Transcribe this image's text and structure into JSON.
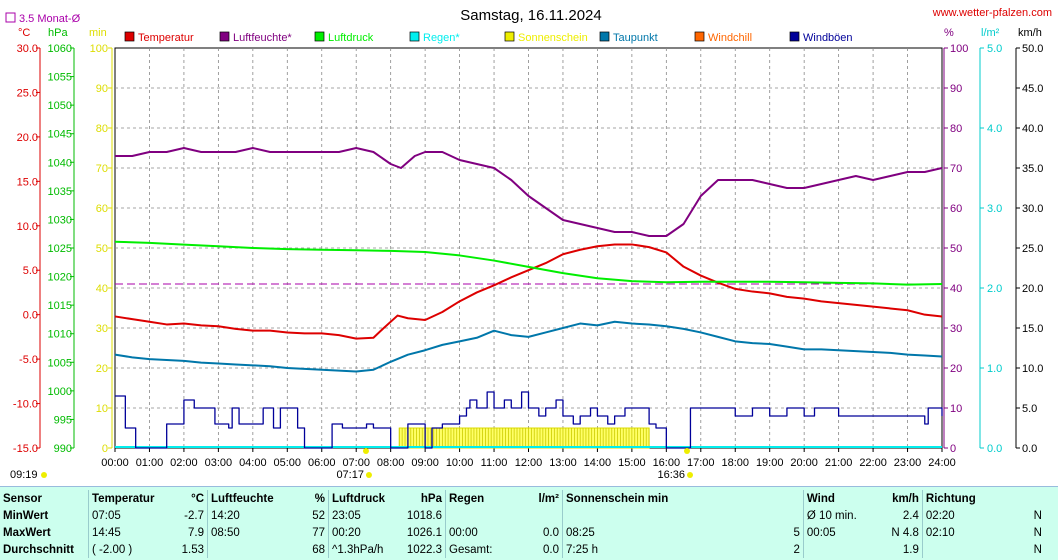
{
  "title": "Samstag, 16.11.2024",
  "site": "www.wetter-pfalzen.com",
  "avg_label": "3.5 Monat-Ø",
  "left_units": [
    "°C",
    "hPa",
    "min"
  ],
  "right_units": [
    "%",
    "l/m²",
    "km/h"
  ],
  "legend": [
    {
      "name": "Temperatur",
      "color": "#dd0000"
    },
    {
      "name": "Luftfeuchte*",
      "color": "#800080"
    },
    {
      "name": "Luftdruck",
      "color": "#00ee00"
    },
    {
      "name": "Regen*",
      "color": "#00eeee"
    },
    {
      "name": "Sonnenschein",
      "color": "#eeee00"
    },
    {
      "name": "Taupunkt",
      "color": "#0077aa"
    },
    {
      "name": "Windchill",
      "color": "#ff6600"
    },
    {
      "name": "Windböen",
      "color": "#000099"
    }
  ],
  "sunrise": "07:17",
  "sunset": "16:36",
  "left_time": "09:19",
  "chart_data": {
    "type": "line",
    "x_ticks": [
      "00:00",
      "01:00",
      "02:00",
      "03:00",
      "04:00",
      "05:00",
      "06:00",
      "07:00",
      "08:00",
      "09:00",
      "10:00",
      "11:00",
      "12:00",
      "13:00",
      "14:00",
      "15:00",
      "16:00",
      "17:00",
      "18:00",
      "19:00",
      "20:00",
      "21:00",
      "22:00",
      "23:00",
      "24:00"
    ],
    "axes": {
      "temperature": {
        "min": -15,
        "max": 30,
        "ticks": [
          "30.0",
          "25.0",
          "20.0",
          "15.0",
          "10.0",
          "5.0",
          "0.0",
          "-5.0",
          "-10.0",
          "-15.0"
        ],
        "color": "#dd0000"
      },
      "pressure": {
        "min": 990,
        "max": 1060,
        "ticks": [
          "1060",
          "1055",
          "1050",
          "1045",
          "1040",
          "1035",
          "1030",
          "1025",
          "1020",
          "1015",
          "1010",
          "1005",
          "1000",
          "995",
          "990"
        ],
        "color": "#00bb00"
      },
      "sunshine": {
        "min": 0,
        "max": 100,
        "ticks": [
          "100",
          "90",
          "80",
          "70",
          "60",
          "50",
          "40",
          "30",
          "20",
          "10",
          "0"
        ],
        "color": "#dddd00"
      },
      "humidity": {
        "min": 0,
        "max": 100,
        "ticks": [
          "100",
          "90",
          "80",
          "70",
          "60",
          "50",
          "40",
          "30",
          "20",
          "10",
          "0"
        ],
        "color": "#800080"
      },
      "rain": {
        "min": 0,
        "max": 5,
        "ticks": [
          "5.0",
          "4.0",
          "3.0",
          "2.0",
          "1.0",
          "0.0"
        ],
        "color": "#00cccc"
      },
      "wind": {
        "min": 0,
        "max": 50,
        "ticks": [
          "50.0",
          "45.0",
          "40.0",
          "35.0",
          "30.0",
          "25.0",
          "20.0",
          "15.0",
          "10.0",
          "5.0",
          "0.0"
        ],
        "color": "#000000"
      }
    },
    "avg_line_value": 41,
    "series": [
      {
        "name": "Temperatur",
        "axis": "temperature",
        "color": "#dd0000",
        "x": [
          0,
          0.5,
          1,
          1.5,
          2,
          2.5,
          3,
          3.5,
          4,
          4.5,
          5,
          5.5,
          6,
          6.5,
          7,
          7.5,
          7.8,
          8.2,
          8.5,
          9,
          9.5,
          10,
          10.5,
          11,
          11.5,
          12,
          12.5,
          13,
          13.5,
          14,
          14.5,
          15,
          15.5,
          16,
          16.5,
          17,
          17.5,
          18,
          18.5,
          19,
          19.5,
          20,
          20.5,
          21,
          21.5,
          22,
          22.5,
          23,
          23.5,
          24
        ],
        "y": [
          -0.2,
          -0.5,
          -0.8,
          -1.1,
          -1.0,
          -1.2,
          -1.3,
          -1.6,
          -1.8,
          -1.8,
          -2.0,
          -2.1,
          -2.1,
          -2.3,
          -2.7,
          -2.6,
          -1.5,
          -0.1,
          -0.4,
          -0.6,
          0.3,
          1.5,
          2.5,
          3.3,
          4.2,
          5.0,
          5.8,
          6.8,
          7.3,
          7.7,
          7.9,
          7.9,
          7.6,
          7.0,
          5.4,
          4.4,
          3.6,
          2.9,
          2.6,
          2.4,
          2.0,
          1.8,
          1.5,
          1.3,
          1.1,
          0.9,
          0.7,
          0.5,
          0.0,
          -0.2
        ]
      },
      {
        "name": "Luftfeuchte*",
        "axis": "humidity",
        "color": "#800080",
        "x": [
          0,
          0.5,
          1,
          1.5,
          2,
          2.5,
          3,
          3.5,
          4,
          4.5,
          5,
          5.5,
          6,
          6.5,
          7,
          7.5,
          8,
          8.3,
          8.7,
          9,
          9.5,
          10,
          10.5,
          11,
          11.5,
          12,
          12.5,
          13,
          13.5,
          14,
          14.5,
          15,
          15.5,
          16,
          16.5,
          17,
          17.5,
          18,
          18.5,
          19,
          19.5,
          20,
          20.5,
          21,
          21.5,
          22,
          22.5,
          23,
          23.5,
          24
        ],
        "y": [
          73,
          73,
          74,
          74,
          75,
          74,
          74,
          74,
          75,
          74,
          74,
          74,
          74,
          74,
          75,
          74,
          71,
          70,
          73,
          74,
          74,
          72,
          71,
          70,
          67,
          63,
          60,
          57,
          56,
          55,
          54,
          54,
          53,
          53,
          56,
          63,
          67,
          67,
          67,
          66,
          65,
          65,
          66,
          67,
          68,
          67,
          68,
          69,
          69,
          70
        ]
      },
      {
        "name": "Luftdruck",
        "axis": "pressure",
        "color": "#00ee00",
        "x": [
          0,
          1,
          2,
          3,
          4,
          5,
          6,
          7,
          8,
          9,
          10,
          11,
          12,
          13,
          14,
          15,
          16,
          17,
          18,
          19,
          20,
          21,
          22,
          23,
          24
        ],
        "y": [
          1026.1,
          1025.9,
          1025.6,
          1025.3,
          1025.0,
          1024.8,
          1024.7,
          1024.6,
          1024.5,
          1024.3,
          1023.7,
          1022.8,
          1021.7,
          1020.6,
          1019.7,
          1019.2,
          1019.0,
          1019.1,
          1019.1,
          1019.1,
          1019.0,
          1018.9,
          1018.8,
          1018.6,
          1018.7
        ]
      },
      {
        "name": "Taupunkt",
        "axis": "temperature",
        "color": "#0077aa",
        "x": [
          0,
          0.5,
          1,
          1.5,
          2,
          2.5,
          3,
          3.5,
          4,
          4.5,
          5,
          5.5,
          6,
          6.5,
          7,
          7.5,
          8,
          8.5,
          9,
          9.5,
          10,
          10.5,
          11,
          11.5,
          12,
          12.5,
          13,
          13.5,
          14,
          14.5,
          15,
          15.5,
          16,
          16.5,
          17,
          17.5,
          18,
          18.5,
          19,
          19.5,
          20,
          20.5,
          21,
          21.5,
          22,
          22.5,
          23,
          23.5,
          24
        ],
        "y": [
          -4.5,
          -4.8,
          -5.0,
          -5.1,
          -5.2,
          -5.4,
          -5.5,
          -5.6,
          -5.7,
          -5.8,
          -6.0,
          -6.1,
          -6.2,
          -6.3,
          -6.4,
          -6.2,
          -5.3,
          -4.5,
          -4.0,
          -3.4,
          -3.0,
          -2.6,
          -1.8,
          -2.3,
          -2.5,
          -2.0,
          -1.5,
          -1.0,
          -1.2,
          -0.8,
          -1.0,
          -1.1,
          -1.3,
          -1.6,
          -2.0,
          -2.5,
          -3.0,
          -3.2,
          -3.3,
          -3.6,
          -3.9,
          -3.9,
          -4.0,
          -4.1,
          -4.2,
          -4.3,
          -4.5,
          -4.6,
          -4.7
        ]
      },
      {
        "name": "Windböen",
        "axis": "wind",
        "color": "#000099",
        "step": true,
        "x": [
          0,
          0.2,
          0.3,
          0.5,
          0.6,
          1.0,
          1.4,
          1.5,
          1.7,
          2.0,
          2.2,
          2.3,
          2.7,
          2.9,
          3.0,
          3.3,
          3.4,
          3.5,
          3.6,
          4.0,
          4.3,
          4.4,
          4.6,
          4.8,
          5.0,
          5.3,
          5.4,
          5.5,
          6.0,
          6.3,
          6.5,
          6.6,
          7.0,
          7.3,
          7.5,
          7.8,
          8.0,
          8.2,
          8.5,
          8.8,
          9.0,
          9.2,
          9.5,
          10.0,
          10.2,
          10.3,
          10.5,
          10.8,
          11.0,
          11.3,
          11.5,
          11.8,
          12.0,
          12.3,
          12.5,
          12.8,
          13.0,
          13.3,
          13.5,
          13.8,
          14.0,
          14.3,
          14.5,
          14.8,
          15.0,
          15.5,
          15.7,
          16.0,
          16.2,
          16.6,
          16.7,
          17.0,
          17.5,
          18.0,
          18.5,
          19.0,
          19.5,
          20.0,
          20.3,
          20.5,
          21.0,
          21.5,
          22.0,
          22.5,
          23.0,
          23.5,
          23.6,
          24.0
        ],
        "y": [
          6.5,
          6.5,
          2.5,
          2.5,
          0,
          0,
          0,
          3,
          3,
          6,
          6,
          5,
          5,
          3,
          3,
          2.5,
          5,
          5,
          3,
          3,
          5,
          5,
          2.5,
          5,
          5,
          2.5,
          2.5,
          0,
          0,
          3,
          3,
          2.5,
          2.5,
          3,
          2.5,
          2.5,
          0,
          0,
          3,
          3,
          0,
          2.5,
          3,
          4,
          5,
          6,
          5,
          7,
          5,
          6,
          5,
          7,
          5,
          4,
          5,
          6,
          4,
          3,
          4,
          5,
          4,
          3,
          4,
          5,
          5,
          3,
          2.5,
          0,
          0,
          0,
          5,
          5,
          5,
          4,
          5,
          4,
          5,
          4,
          5,
          5,
          4,
          4,
          4,
          4,
          4,
          3,
          5,
          4
        ]
      }
    ],
    "sunshine": {
      "axis": "sunshine",
      "color": "#eeee00",
      "start": 8.25,
      "end": 15.5,
      "level": 5
    }
  },
  "stats": {
    "headers": [
      "Sensor",
      "Temperatur",
      "°C",
      "Luftfeuchte",
      "%",
      "Luftdruck",
      "hPa",
      "Regen",
      "l/m²",
      "Sonnenschein min",
      "Wind",
      "km/h",
      "Richtung"
    ],
    "rows": [
      {
        "label": "MinWert",
        "t_time": "07:05",
        "t_val": "-2.7",
        "h_time": "14:20",
        "h_val": "52",
        "p_time": "23:05",
        "p_val": "1018.6",
        "r_time": "",
        "r_val": "",
        "s_time": "",
        "s_val": "",
        "w_time": "Ø 10 min.",
        "w_val": "2.4",
        "d_time": "02:20",
        "d_val": "N"
      },
      {
        "label": "MaxWert",
        "t_time": "14:45",
        "t_val": "7.9",
        "h_time": "08:50",
        "h_val": "77",
        "p_time": "00:20",
        "p_val": "1026.1",
        "r_time": "00:00",
        "r_val": "0.0",
        "s_time": "08:25",
        "s_val": "5",
        "w_time": "00:05",
        "w_val": "N 4.8",
        "d_time": "02:10",
        "d_val": "N"
      },
      {
        "label": "Durchschnitt",
        "t_time": "( -2.00 )",
        "t_val": "1.53",
        "h_time": "",
        "h_val": "68",
        "p_time": "^1.3hPa/h",
        "p_val": "1022.3",
        "r_time": "Gesamt:",
        "r_val": "0.0",
        "s_time": "7:25 h",
        "s_val": "2",
        "w_time": "",
        "w_val": "1.9",
        "d_time": "",
        "d_val": "N"
      }
    ]
  }
}
